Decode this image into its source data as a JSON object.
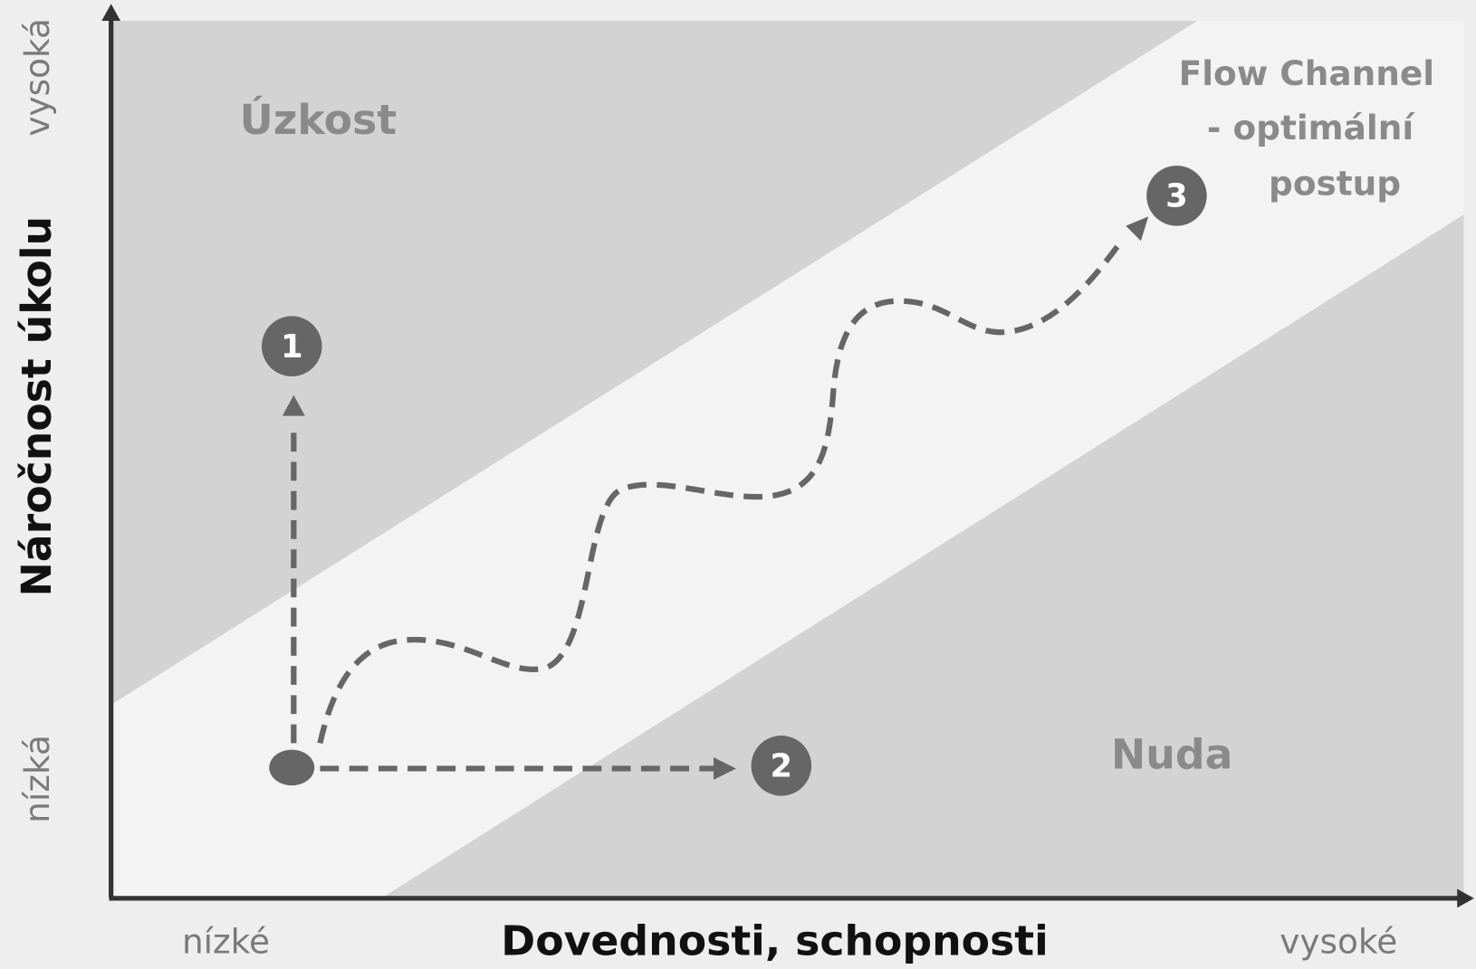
{
  "regions": {
    "anxiety": "Úzkost",
    "boredom": "Nuda",
    "flow": [
      "Flow Channel",
      "- optimální",
      "postup"
    ]
  },
  "y_axis": {
    "label": "Náročnost úkolu",
    "high": "vysoká",
    "low": "nízká"
  },
  "x_axis": {
    "label": "Dovednosti, schopnosti",
    "low": "nízké",
    "high": "vysoké"
  },
  "markers": [
    "1",
    "2",
    "3"
  ]
}
